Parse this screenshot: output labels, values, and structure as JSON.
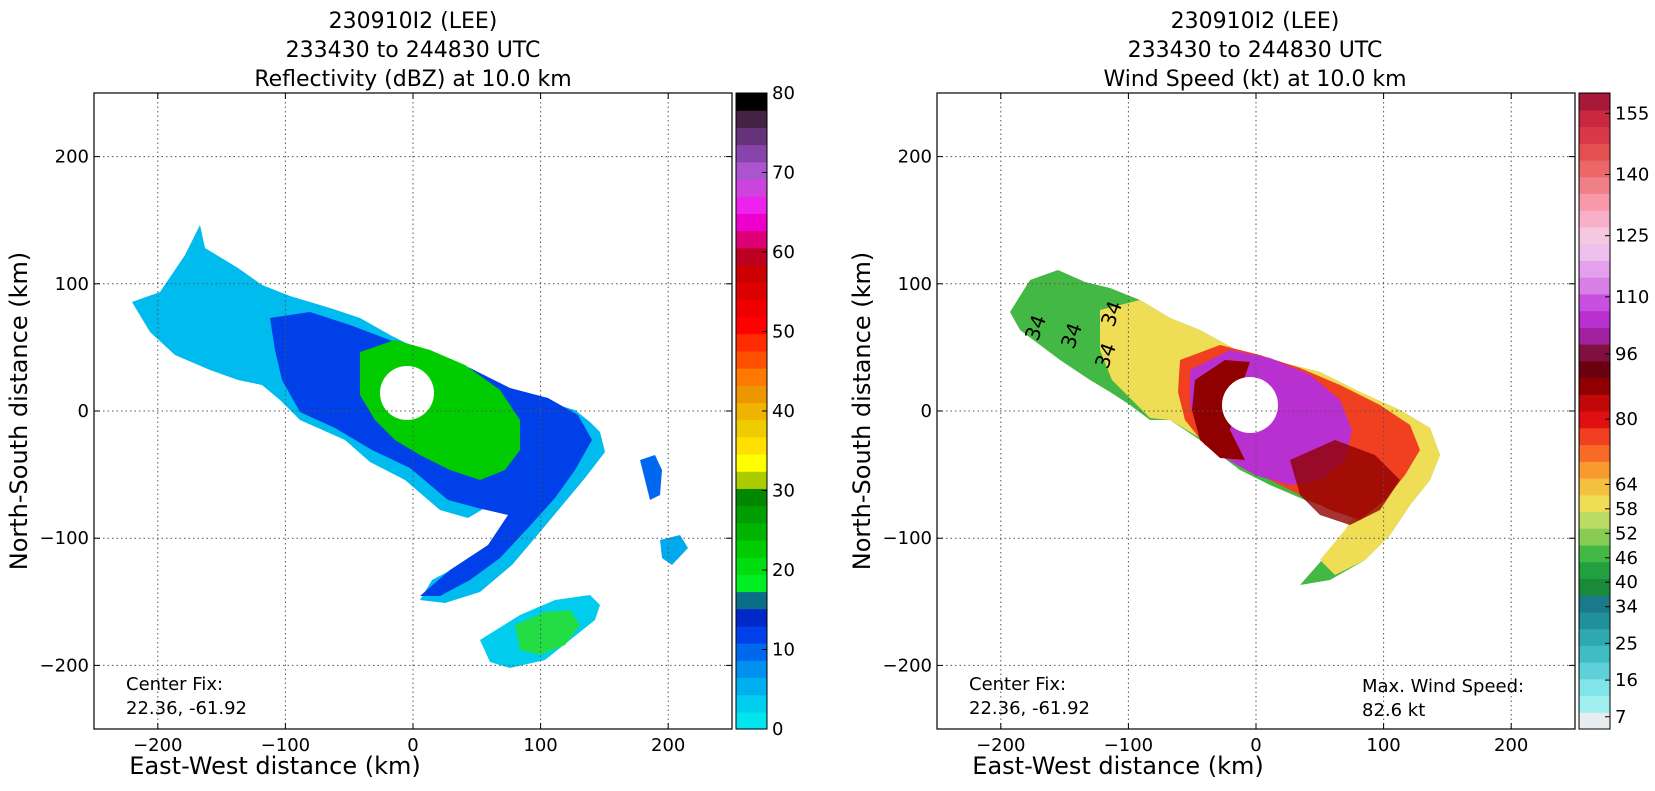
{
  "chart_data": [
    {
      "type": "heatmap",
      "title_lines": [
        "230910I2 (LEE)",
        "233430 to 244830 UTC",
        "Reflectivity (dBZ) at 10.0 km"
      ],
      "xlabel": "East-West distance (km)",
      "ylabel": "North-South distance (km)",
      "xlim": [
        -250,
        250
      ],
      "ylim": [
        -250,
        250
      ],
      "xticks": [
        -200,
        -100,
        0,
        100,
        200
      ],
      "yticks": [
        -200,
        -100,
        0,
        100,
        200
      ],
      "xtick_labels": [
        "−200",
        "−100",
        "0",
        "100",
        "200"
      ],
      "ytick_labels": [
        "−200",
        "−100",
        "0",
        "100",
        "200"
      ],
      "grid": true,
      "annotation_lines": [
        "Center Fix:",
        "22.36, -61.92"
      ],
      "colorbar": {
        "range": [
          0,
          80
        ],
        "ticks": [
          0,
          10,
          20,
          30,
          40,
          50,
          60,
          70,
          80
        ],
        "tick_labels": [
          "0",
          "10",
          "20",
          "30",
          "40",
          "50",
          "60",
          "70",
          "80"
        ],
        "colors": [
          "#00e5ee",
          "#00ccee",
          "#00b0ee",
          "#0090ee",
          "#0068ee",
          "#0040e8",
          "#0028c8",
          "#0a6e88",
          "#00ee22",
          "#00dd11",
          "#00cc00",
          "#00b400",
          "#009e00",
          "#008800",
          "#aacc00",
          "#ffff00",
          "#ffe000",
          "#eecc00",
          "#eeb400",
          "#ee9600",
          "#ff7800",
          "#ff5000",
          "#ff2c00",
          "#ff0000",
          "#ee0000",
          "#dd0000",
          "#cc0000",
          "#bb0022",
          "#dd0077",
          "#ee00cc",
          "#ee22ee",
          "#cc44dd",
          "#aa55cc",
          "#8844aa",
          "#66337a",
          "#442244",
          "#000000"
        ]
      }
    },
    {
      "type": "heatmap",
      "title_lines": [
        "230910I2 (LEE)",
        "233430 to 244830 UTC",
        "Wind Speed (kt) at 10.0 km"
      ],
      "xlabel": "East-West distance (km)",
      "ylabel": "North-South distance (km)",
      "xlim": [
        -250,
        250
      ],
      "ylim": [
        -250,
        250
      ],
      "xticks": [
        -200,
        -100,
        0,
        100,
        200
      ],
      "yticks": [
        -200,
        -100,
        0,
        100,
        200
      ],
      "xtick_labels": [
        "−200",
        "−100",
        "0",
        "100",
        "200"
      ],
      "ytick_labels": [
        "−200",
        "−100",
        "0",
        "100",
        "200"
      ],
      "grid": true,
      "annotation_lines": [
        "Center Fix:",
        "22.36, -61.92"
      ],
      "max_wind_lines": [
        "Max. Wind Speed:",
        "82.6 kt"
      ],
      "contour_labels": [
        "34",
        "34",
        "34",
        "34"
      ],
      "colorbar": {
        "range": [
          4,
          160
        ],
        "ticks": [
          7,
          16,
          25,
          34,
          40,
          46,
          52,
          58,
          64,
          80,
          96,
          110,
          125,
          140,
          155
        ],
        "tick_labels": [
          "7",
          "16",
          "25",
          "34",
          "40",
          "46",
          "52",
          "58",
          "64",
          "80",
          "96",
          "110",
          "125",
          "140",
          "155"
        ],
        "colors": [
          "#e8eef0",
          "#a0f0f0",
          "#80e4e8",
          "#60d0d8",
          "#40bcc4",
          "#30a8b0",
          "#20909c",
          "#1a7a8a",
          "#1a8a3a",
          "#22a040",
          "#44b844",
          "#88cc55",
          "#bbdd66",
          "#eedd55",
          "#f4c040",
          "#f89a30",
          "#f86a28",
          "#f04020",
          "#e01010",
          "#c00808",
          "#900000",
          "#6a0010",
          "#801040",
          "#a020a0",
          "#b830d0",
          "#c850e0",
          "#d880e8",
          "#e4a0ec",
          "#eec0ee",
          "#f4c8e0",
          "#f8b0c8",
          "#f898a8",
          "#f08088",
          "#ec6868",
          "#e45050",
          "#d83848",
          "#c82840",
          "#a81838"
        ]
      }
    }
  ]
}
